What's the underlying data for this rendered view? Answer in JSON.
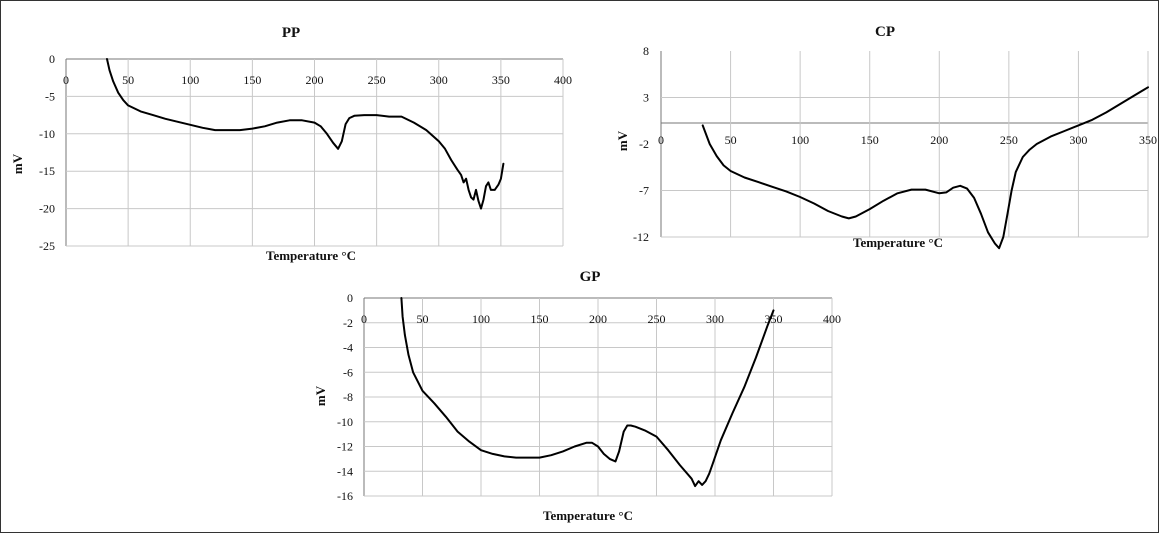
{
  "chart_data": [
    {
      "id": "pp",
      "type": "line",
      "title": "PP",
      "xlabel": "Temperature °C",
      "ylabel": "mV",
      "xlim": [
        0,
        400
      ],
      "ylim": [
        -25,
        0
      ],
      "xticks": [
        0,
        50,
        100,
        150,
        200,
        250,
        300,
        350,
        400
      ],
      "yticks": [
        0,
        -5,
        -10,
        -15,
        -20,
        -25
      ],
      "grid": true,
      "series": [
        {
          "x": [
            33,
            35,
            38,
            42,
            46,
            50,
            60,
            70,
            80,
            90,
            100,
            110,
            120,
            130,
            140,
            150,
            160,
            170,
            180,
            190,
            200,
            205,
            210,
            215,
            219,
            222,
            225,
            228,
            232,
            240,
            250,
            260,
            270,
            280,
            290,
            300,
            305,
            310,
            315,
            318,
            320,
            322,
            324,
            326,
            328,
            330,
            332,
            334,
            336,
            338,
            340,
            342,
            345,
            348,
            350,
            352
          ],
          "y": [
            0,
            -1.5,
            -3,
            -4.5,
            -5.5,
            -6.2,
            -7.0,
            -7.5,
            -8.0,
            -8.4,
            -8.8,
            -9.2,
            -9.5,
            -9.5,
            -9.5,
            -9.3,
            -9.0,
            -8.5,
            -8.2,
            -8.2,
            -8.5,
            -9.0,
            -10.0,
            -11.2,
            -12.0,
            -11.0,
            -8.7,
            -7.9,
            -7.6,
            -7.5,
            -7.5,
            -7.7,
            -7.7,
            -8.5,
            -9.5,
            -11.0,
            -12.0,
            -13.5,
            -14.8,
            -15.5,
            -16.5,
            -16.0,
            -17.5,
            -18.5,
            -18.8,
            -17.5,
            -19.0,
            -20.0,
            -18.8,
            -17.0,
            -16.5,
            -17.5,
            -17.5,
            -16.8,
            -16.0,
            -14.0
          ]
        }
      ]
    },
    {
      "id": "cp",
      "type": "line",
      "title": "CP",
      "xlabel": "Temperature °C",
      "ylabel": "mV",
      "xlim": [
        0,
        350
      ],
      "ylim": [
        -12,
        8
      ],
      "xticks": [
        0,
        50,
        100,
        150,
        200,
        250,
        300,
        350
      ],
      "yticks": [
        "8",
        "3",
        "-2",
        "-7",
        "-12"
      ],
      "grid": true,
      "series": [
        {
          "x": [
            30,
            35,
            40,
            45,
            50,
            60,
            70,
            80,
            90,
            100,
            110,
            120,
            130,
            135,
            140,
            150,
            160,
            170,
            180,
            190,
            200,
            205,
            210,
            215,
            220,
            225,
            230,
            235,
            240,
            243,
            246,
            249,
            252,
            255,
            260,
            265,
            270,
            280,
            290,
            300,
            310,
            320,
            330,
            340,
            350
          ],
          "y": [
            0,
            -2,
            -3.3,
            -4.3,
            -4.9,
            -5.6,
            -6.1,
            -6.6,
            -7.1,
            -7.7,
            -8.4,
            -9.2,
            -9.8,
            -10.0,
            -9.8,
            -9.0,
            -8.1,
            -7.3,
            -6.9,
            -6.9,
            -7.3,
            -7.2,
            -6.7,
            -6.5,
            -6.8,
            -7.8,
            -9.5,
            -11.5,
            -12.7,
            -13.2,
            -12.0,
            -9.5,
            -7.0,
            -5.0,
            -3.4,
            -2.6,
            -2.0,
            -1.2,
            -0.6,
            0,
            0.6,
            1.4,
            2.3,
            3.2,
            4.1
          ]
        }
      ]
    },
    {
      "id": "gp",
      "type": "line",
      "title": "GP",
      "xlabel": "Temperature °C",
      "ylabel": "mV",
      "xlim": [
        0,
        400
      ],
      "ylim": [
        -16,
        0
      ],
      "xticks": [
        0,
        50,
        100,
        150,
        200,
        250,
        300,
        350,
        400
      ],
      "yticks": [
        0,
        -2,
        -4,
        -6,
        -8,
        -10,
        -12,
        -14,
        -16
      ],
      "grid": true,
      "series": [
        {
          "x": [
            32,
            33,
            35,
            38,
            42,
            50,
            60,
            70,
            80,
            90,
            100,
            110,
            120,
            130,
            140,
            150,
            160,
            170,
            180,
            190,
            195,
            200,
            205,
            210,
            215,
            218,
            222,
            225,
            228,
            232,
            240,
            250,
            260,
            270,
            280,
            283,
            286,
            289,
            292,
            295,
            298,
            305,
            315,
            325,
            335,
            345,
            350
          ],
          "y": [
            0,
            -1.5,
            -3,
            -4.6,
            -6,
            -7.5,
            -8.5,
            -9.6,
            -10.8,
            -11.6,
            -12.3,
            -12.6,
            -12.8,
            -12.9,
            -12.9,
            -12.9,
            -12.7,
            -12.4,
            -12.0,
            -11.7,
            -11.7,
            -12.0,
            -12.6,
            -13.0,
            -13.2,
            -12.4,
            -10.8,
            -10.3,
            -10.3,
            -10.4,
            -10.7,
            -11.2,
            -12.3,
            -13.5,
            -14.6,
            -15.2,
            -14.8,
            -15.1,
            -14.8,
            -14.2,
            -13.4,
            -11.5,
            -9.3,
            -7.2,
            -4.8,
            -2.2,
            -1.0
          ]
        }
      ]
    }
  ]
}
